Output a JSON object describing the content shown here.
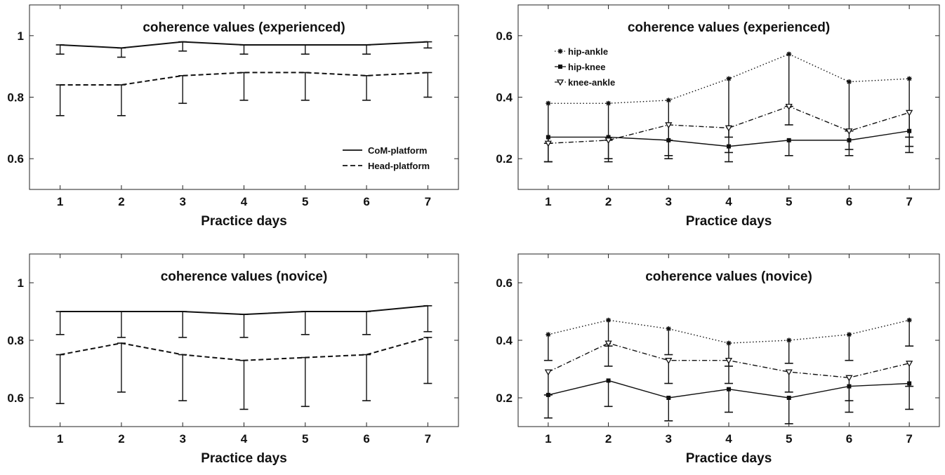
{
  "chart_data": [
    {
      "type": "line",
      "panel": "top-left",
      "title": "coherence values (experienced)",
      "xlabel": "Practice days",
      "ylabel": "",
      "x": [
        1,
        2,
        3,
        4,
        5,
        6,
        7
      ],
      "xlim": [
        0.5,
        7.5
      ],
      "ylim": [
        0.5,
        1.1
      ],
      "yticks": [
        0.6,
        0.8,
        1
      ],
      "ytick_labels": [
        "0.6",
        "0.8",
        "1"
      ],
      "grid": false,
      "legend_position": "lower-right",
      "series": [
        {
          "name": "CoM-platform",
          "style": "solid",
          "marker": "none",
          "values": [
            0.97,
            0.96,
            0.98,
            0.97,
            0.97,
            0.97,
            0.98
          ],
          "err_lower": [
            0.94,
            0.93,
            0.95,
            0.94,
            0.94,
            0.94,
            0.96
          ]
        },
        {
          "name": "Head-platform",
          "style": "dashed",
          "marker": "none",
          "values": [
            0.84,
            0.84,
            0.87,
            0.88,
            0.88,
            0.87,
            0.88
          ],
          "err_lower": [
            0.74,
            0.74,
            0.78,
            0.79,
            0.79,
            0.79,
            0.8
          ]
        }
      ]
    },
    {
      "type": "line",
      "panel": "top-right",
      "title": "coherence values (experienced)",
      "xlabel": "Practice days",
      "ylabel": "",
      "x": [
        1,
        2,
        3,
        4,
        5,
        6,
        7
      ],
      "xlim": [
        0.5,
        7.5
      ],
      "ylim": [
        0.1,
        0.7
      ],
      "yticks": [
        0.2,
        0.4,
        0.6
      ],
      "ytick_labels": [
        "0.2",
        "0.4",
        "0.6"
      ],
      "grid": false,
      "legend_position": "top-left",
      "series": [
        {
          "name": "hip-ankle",
          "style": "dotted",
          "marker": "star",
          "values": [
            0.38,
            0.38,
            0.39,
            0.46,
            0.54,
            0.45,
            0.46
          ],
          "err_lower": [
            0.25,
            0.26,
            0.26,
            0.27,
            0.37,
            0.29,
            0.27
          ]
        },
        {
          "name": "hip-knee",
          "style": "solid",
          "marker": "square",
          "values": [
            0.27,
            0.27,
            0.26,
            0.24,
            0.26,
            0.26,
            0.29
          ],
          "err_lower": [
            0.19,
            0.19,
            0.2,
            0.19,
            0.21,
            0.21,
            0.22
          ]
        },
        {
          "name": "knee-ankle",
          "style": "dashdot",
          "marker": "triangle-down",
          "values": [
            0.25,
            0.26,
            0.31,
            0.3,
            0.37,
            0.29,
            0.35
          ],
          "err_lower": [
            0.19,
            0.2,
            0.21,
            0.22,
            0.31,
            0.23,
            0.24
          ]
        }
      ]
    },
    {
      "type": "line",
      "panel": "bottom-left",
      "title": "coherence values (novice)",
      "xlabel": "Practice days",
      "ylabel": "",
      "x": [
        1,
        2,
        3,
        4,
        5,
        6,
        7
      ],
      "xlim": [
        0.5,
        7.5
      ],
      "ylim": [
        0.5,
        1.1
      ],
      "yticks": [
        0.6,
        0.8,
        1
      ],
      "ytick_labels": [
        "0.6",
        "0.8",
        "1"
      ],
      "grid": false,
      "series": [
        {
          "name": "CoM-platform",
          "style": "solid",
          "marker": "none",
          "values": [
            0.9,
            0.9,
            0.9,
            0.89,
            0.9,
            0.9,
            0.92
          ],
          "err_lower": [
            0.82,
            0.81,
            0.81,
            0.81,
            0.82,
            0.82,
            0.83
          ]
        },
        {
          "name": "Head-platform",
          "style": "dashed",
          "marker": "none",
          "values": [
            0.75,
            0.79,
            0.75,
            0.73,
            0.74,
            0.75,
            0.81
          ],
          "err_lower": [
            0.58,
            0.62,
            0.59,
            0.56,
            0.57,
            0.59,
            0.65
          ]
        }
      ]
    },
    {
      "type": "line",
      "panel": "bottom-right",
      "title": "coherence values (novice)",
      "xlabel": "Practice days",
      "ylabel": "",
      "x": [
        1,
        2,
        3,
        4,
        5,
        6,
        7
      ],
      "xlim": [
        0.5,
        7.5
      ],
      "ylim": [
        0.1,
        0.7
      ],
      "yticks": [
        0.2,
        0.4,
        0.6
      ],
      "ytick_labels": [
        "0.2",
        "0.4",
        "0.6"
      ],
      "grid": false,
      "series": [
        {
          "name": "hip-ankle",
          "style": "dotted",
          "marker": "star",
          "values": [
            0.42,
            0.47,
            0.44,
            0.39,
            0.4,
            0.42,
            0.47
          ],
          "err_lower": [
            0.33,
            0.38,
            0.35,
            0.31,
            0.32,
            0.33,
            0.38
          ]
        },
        {
          "name": "hip-knee",
          "style": "solid",
          "marker": "square",
          "values": [
            0.21,
            0.26,
            0.2,
            0.23,
            0.2,
            0.24,
            0.25
          ],
          "err_lower": [
            0.13,
            0.17,
            0.12,
            0.15,
            0.11,
            0.15,
            0.16
          ]
        },
        {
          "name": "knee-ankle",
          "style": "dashdot",
          "marker": "triangle-down",
          "values": [
            0.29,
            0.39,
            0.33,
            0.33,
            0.29,
            0.27,
            0.32
          ],
          "err_lower": [
            0.21,
            0.31,
            0.25,
            0.25,
            0.22,
            0.19,
            0.24
          ]
        }
      ]
    }
  ]
}
